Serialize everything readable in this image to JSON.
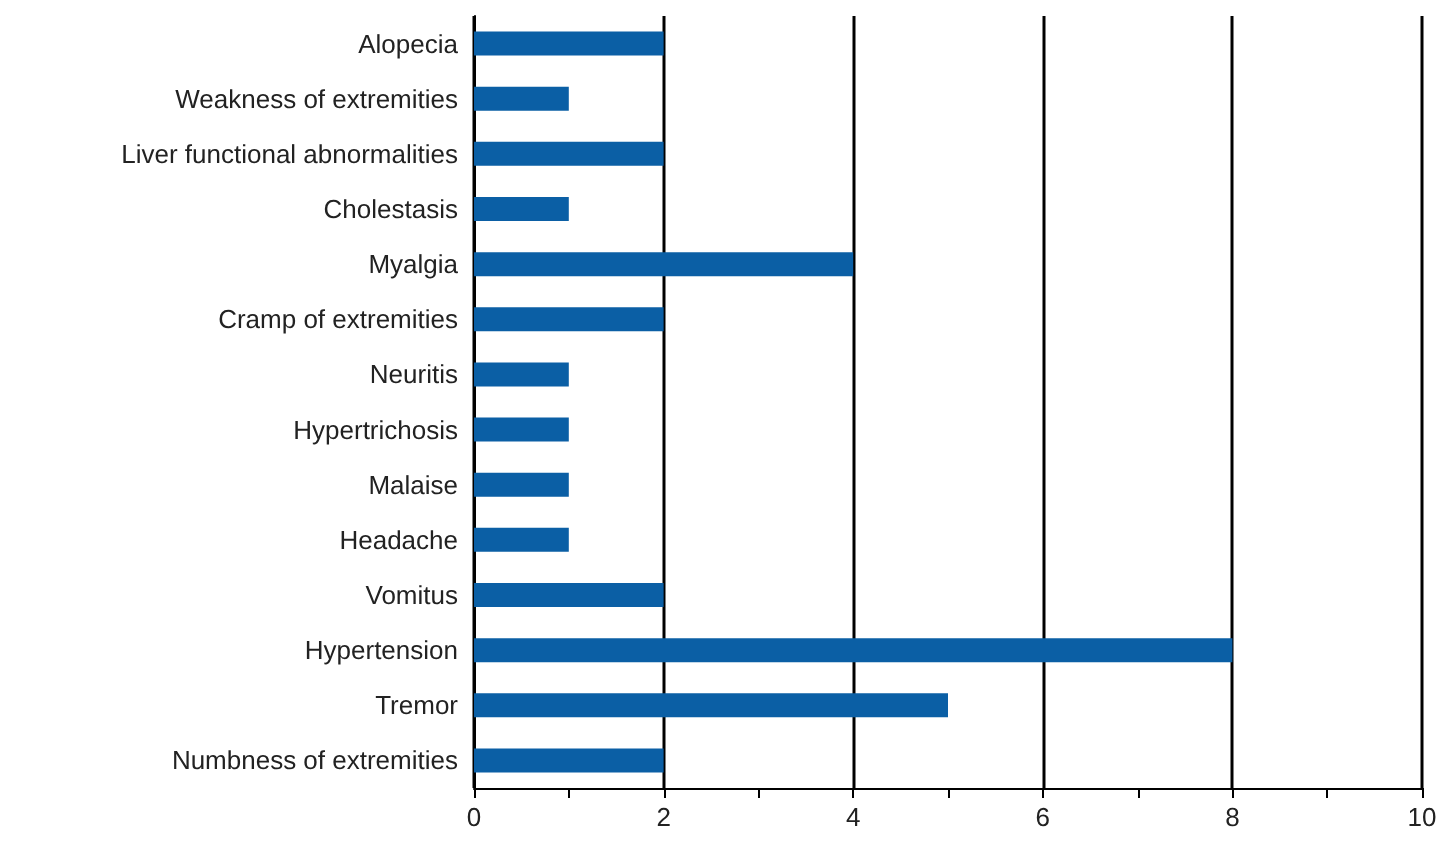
{
  "chart_data": {
    "type": "bar",
    "orientation": "horizontal",
    "categories": [
      "Alopecia",
      "Weakness of extremities",
      "Liver functional abnormalities",
      "Cholestasis",
      "Myalgia",
      "Cramp of extremities",
      "Neuritis",
      "Hypertrichosis",
      "Malaise",
      "Headache",
      "Vomitus",
      "Hypertension",
      "Tremor",
      "Numbness of extremities"
    ],
    "values": [
      2,
      1,
      2,
      1,
      4,
      2,
      1,
      1,
      1,
      1,
      2,
      8,
      5,
      2
    ],
    "color": "#0b5fa5",
    "xlim": [
      0,
      10
    ],
    "xticks": [
      0,
      {
        "value": 1,
        "label": null
      },
      2,
      {
        "value": 3,
        "label": null
      },
      4,
      {
        "value": 5,
        "label": null
      },
      6,
      {
        "value": 7,
        "label": null
      },
      8,
      {
        "value": 9,
        "label": null
      },
      10
    ],
    "grid": "x"
  }
}
